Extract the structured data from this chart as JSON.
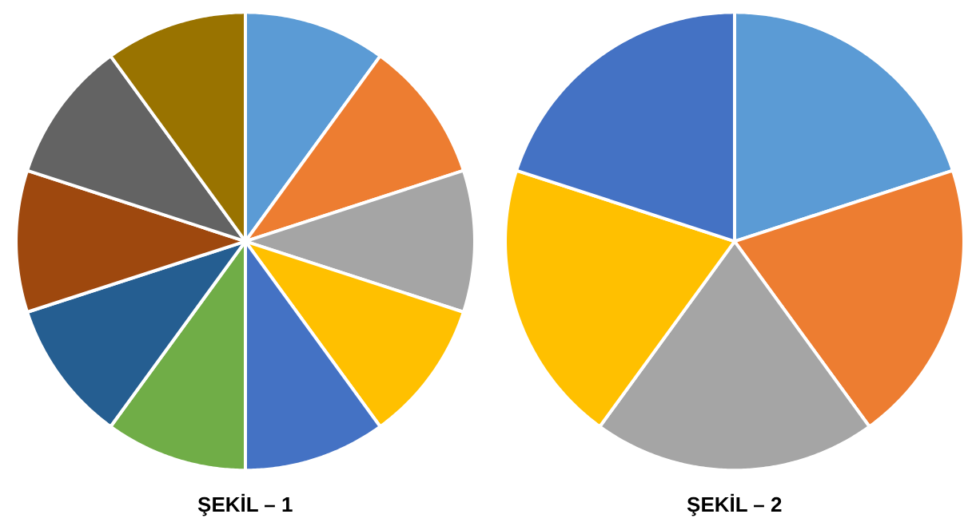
{
  "chart_data": [
    {
      "type": "pie",
      "title": "ŞEKİL – 1",
      "categories": [
        null,
        null,
        null,
        null,
        null,
        null,
        null,
        null,
        null,
        null
      ],
      "values": [
        10,
        10,
        10,
        10,
        10,
        10,
        10,
        10,
        10,
        10
      ],
      "colors": [
        "#5b9bd5",
        "#ed7d31",
        "#a5a5a5",
        "#ffc000",
        "#4472c4",
        "#70ad47",
        "#255e91",
        "#9e480e",
        "#636363",
        "#997300"
      ]
    },
    {
      "type": "pie",
      "title": "ŞEKİL – 2",
      "categories": [
        null,
        null,
        null,
        null,
        null
      ],
      "values": [
        20,
        20,
        20,
        20,
        20
      ],
      "colors": [
        "#5b9bd5",
        "#ed7d31",
        "#a5a5a5",
        "#ffc000",
        "#4472c4"
      ]
    }
  ]
}
